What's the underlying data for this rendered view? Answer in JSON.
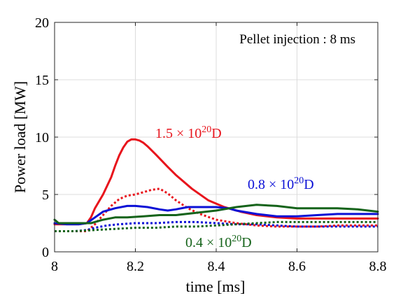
{
  "chart_data": {
    "type": "line",
    "xlabel": "time [ms]",
    "ylabel": "Power load [MW]",
    "xlim": [
      8,
      8.8
    ],
    "ylim": [
      0,
      20
    ],
    "xticks": [
      8,
      8.2,
      8.4,
      8.6,
      8.8
    ],
    "xtick_labels": [
      "8",
      "8.2",
      "8.4",
      "8.6",
      "8.8"
    ],
    "yticks": [
      0,
      5,
      10,
      15,
      20
    ],
    "ytick_labels": [
      "0",
      "5",
      "10",
      "15",
      "20"
    ],
    "grid": true,
    "note": "Pellet injection : 8 ms",
    "annotations": [
      {
        "prefix": "1.5 × 10",
        "sup": "20",
        "suffix": "D",
        "color": "#e8141c"
      },
      {
        "prefix": "0.8 × 10",
        "sup": "20",
        "suffix": "D",
        "color": "#0b10d6"
      },
      {
        "prefix": "0.4 × 10",
        "sup": "20",
        "suffix": "D",
        "color": "#15631a"
      }
    ],
    "series": [
      {
        "color": "#e8141c",
        "dash": "solid",
        "x": [
          8.0,
          8.01,
          8.02,
          8.04,
          8.06,
          8.08,
          8.09,
          8.1,
          8.12,
          8.14,
          8.15,
          8.16,
          8.17,
          8.18,
          8.19,
          8.2,
          8.21,
          8.22,
          8.23,
          8.25,
          8.28,
          8.3,
          8.34,
          8.38,
          8.42,
          8.46,
          8.5,
          8.55,
          8.6,
          8.65,
          8.7,
          8.75,
          8.8
        ],
        "y": [
          2.4,
          2.4,
          2.4,
          2.4,
          2.4,
          2.5,
          3.0,
          3.8,
          5.0,
          6.5,
          7.5,
          8.4,
          9.1,
          9.6,
          9.8,
          9.8,
          9.7,
          9.5,
          9.2,
          8.5,
          7.4,
          6.7,
          5.5,
          4.5,
          3.9,
          3.5,
          3.2,
          3.0,
          2.9,
          2.9,
          2.9,
          2.9,
          2.9
        ]
      },
      {
        "color": "#e8141c",
        "dash": "dotted",
        "x": [
          8.0,
          8.02,
          8.05,
          8.08,
          8.1,
          8.12,
          8.14,
          8.16,
          8.18,
          8.2,
          8.22,
          8.24,
          8.26,
          8.28,
          8.3,
          8.33,
          8.36,
          8.4,
          8.45,
          8.5,
          8.55,
          8.6,
          8.65,
          8.7,
          8.75,
          8.8
        ],
        "y": [
          1.8,
          1.8,
          1.8,
          1.8,
          2.4,
          3.2,
          4.0,
          4.6,
          4.9,
          5.0,
          5.2,
          5.4,
          5.5,
          5.1,
          4.5,
          3.8,
          3.3,
          2.8,
          2.5,
          2.3,
          2.2,
          2.2,
          2.2,
          2.3,
          2.3,
          2.3
        ]
      },
      {
        "color": "#0b10d6",
        "dash": "solid",
        "x": [
          8.0,
          8.03,
          8.06,
          8.08,
          8.1,
          8.12,
          8.15,
          8.18,
          8.2,
          8.23,
          8.26,
          8.28,
          8.3,
          8.33,
          8.37,
          8.4,
          8.43,
          8.45,
          8.5,
          8.55,
          8.6,
          8.65,
          8.7,
          8.75,
          8.8
        ],
        "y": [
          2.5,
          2.4,
          2.4,
          2.5,
          3.0,
          3.5,
          3.8,
          4.0,
          4.0,
          3.9,
          3.7,
          3.6,
          3.7,
          3.9,
          3.9,
          3.9,
          3.8,
          3.6,
          3.3,
          3.1,
          3.1,
          3.2,
          3.3,
          3.3,
          3.3
        ]
      },
      {
        "color": "#0b10d6",
        "dash": "dotted",
        "x": [
          8.0,
          8.05,
          8.08,
          8.1,
          8.13,
          8.16,
          8.2,
          8.25,
          8.3,
          8.35,
          8.4,
          8.45,
          8.5,
          8.55,
          8.6,
          8.65,
          8.7,
          8.75,
          8.8
        ],
        "y": [
          1.8,
          1.8,
          1.9,
          2.1,
          2.3,
          2.4,
          2.5,
          2.5,
          2.6,
          2.6,
          2.5,
          2.4,
          2.4,
          2.3,
          2.2,
          2.2,
          2.2,
          2.2,
          2.2
        ]
      },
      {
        "color": "#15631a",
        "dash": "solid",
        "x": [
          8.0,
          8.01,
          8.03,
          8.06,
          8.09,
          8.12,
          8.15,
          8.18,
          8.22,
          8.26,
          8.3,
          8.35,
          8.4,
          8.45,
          8.5,
          8.55,
          8.6,
          8.65,
          8.7,
          8.75,
          8.8
        ],
        "y": [
          2.8,
          2.5,
          2.5,
          2.5,
          2.5,
          2.8,
          3.0,
          3.0,
          3.1,
          3.2,
          3.2,
          3.4,
          3.6,
          3.9,
          4.1,
          4.0,
          3.8,
          3.8,
          3.8,
          3.7,
          3.5
        ]
      },
      {
        "color": "#15631a",
        "dash": "dotted",
        "x": [
          8.0,
          8.05,
          8.1,
          8.15,
          8.2,
          8.25,
          8.3,
          8.35,
          8.4,
          8.45,
          8.5,
          8.55,
          8.6,
          8.65,
          8.7,
          8.75,
          8.8
        ],
        "y": [
          1.8,
          1.8,
          1.9,
          2.0,
          2.1,
          2.1,
          2.2,
          2.2,
          2.3,
          2.4,
          2.5,
          2.6,
          2.6,
          2.6,
          2.6,
          2.6,
          2.6
        ]
      }
    ]
  }
}
